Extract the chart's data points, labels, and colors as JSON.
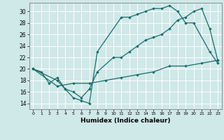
{
  "xlabel": "Humidex (Indice chaleur)",
  "xlim": [
    -0.5,
    23.5
  ],
  "ylim": [
    13,
    31.5
  ],
  "yticks": [
    14,
    16,
    18,
    20,
    22,
    24,
    26,
    28,
    30
  ],
  "xticks": [
    0,
    1,
    2,
    3,
    4,
    5,
    6,
    7,
    8,
    9,
    10,
    11,
    12,
    13,
    14,
    15,
    16,
    17,
    18,
    19,
    20,
    21,
    22,
    23
  ],
  "bg_color": "#cfe8e8",
  "line_color": "#1a6b6b",
  "grid_color": "#ffffff",
  "line1_x": [
    0,
    1,
    2,
    3,
    4,
    5,
    6,
    7,
    8,
    11,
    12,
    13,
    14,
    15,
    16,
    17,
    18,
    19,
    20,
    22,
    23
  ],
  "line1_y": [
    20,
    19.5,
    17.5,
    18.5,
    16.5,
    15,
    14.5,
    14,
    23,
    29,
    29,
    29.5,
    30,
    30.5,
    30.5,
    31,
    30,
    28,
    28,
    23,
    21
  ],
  "line2_x": [
    0,
    3,
    4,
    5,
    6,
    7,
    8,
    10,
    11,
    12,
    13,
    14,
    15,
    16,
    17,
    18,
    19,
    20,
    21,
    22,
    23
  ],
  "line2_y": [
    20,
    18,
    16.5,
    16,
    15,
    16.5,
    19.5,
    22,
    22,
    23,
    24,
    25,
    25.5,
    26,
    27,
    28.5,
    29,
    30,
    30.5,
    27,
    21.5
  ],
  "line3_x": [
    0,
    3,
    5,
    7,
    9,
    11,
    13,
    15,
    17,
    19,
    21,
    23
  ],
  "line3_y": [
    20,
    17,
    17.5,
    17.5,
    18,
    18.5,
    19,
    19.5,
    20.5,
    20.5,
    21,
    21.5
  ]
}
